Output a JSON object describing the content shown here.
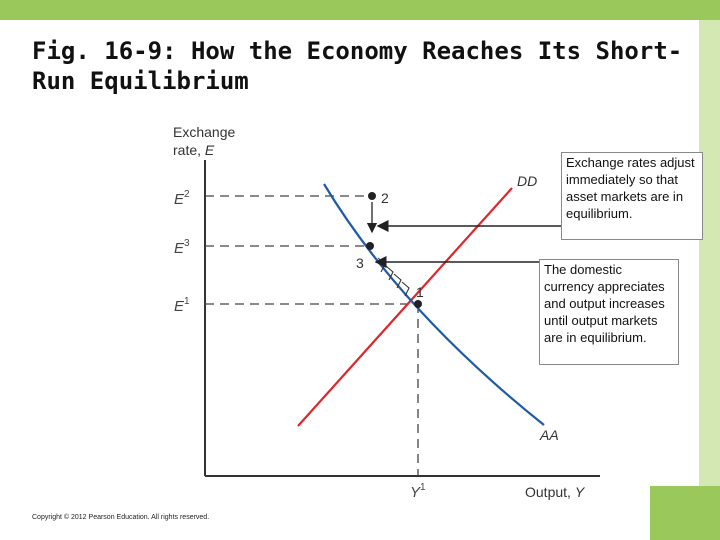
{
  "slide": {
    "title": "Fig. 16-9: How the Economy Reaches Its Short-Run Equilibrium",
    "copyright": "Copyright © 2012 Pearson Education. All rights reserved."
  },
  "diagram": {
    "y_axis_label_line1": "Exchange",
    "y_axis_label_line2": "rate, ",
    "y_axis_label_var": "E",
    "x_axis_label": "Output, ",
    "x_axis_label_var": "Y",
    "y_ticks": [
      {
        "base": "E",
        "sup": "2"
      },
      {
        "base": "E",
        "sup": "3"
      },
      {
        "base": "E",
        "sup": "1"
      }
    ],
    "x_tick": {
      "base": "Y",
      "sup": "1"
    },
    "curves": {
      "dd": "DD",
      "aa": "AA"
    },
    "points": {
      "p1": "1",
      "p2": "2",
      "p3": "3"
    },
    "colors": {
      "dd": "#e0262b",
      "aa": "#1f5aa6",
      "points": "#222222"
    }
  },
  "callouts": {
    "asset_markets": "Exchange rates adjust immediately so that asset markets are in equilibrium.",
    "output_markets": "The domestic currency appreciates and output increases until output markets are in equilibrium."
  }
}
